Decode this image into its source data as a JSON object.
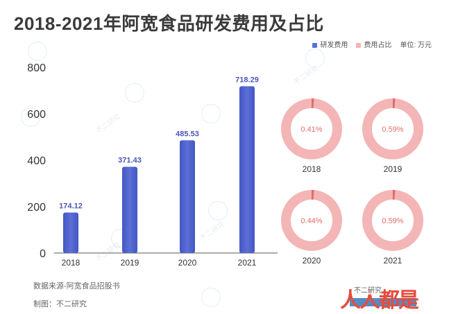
{
  "title": "2018-2021年阿宽食品研发费用及占比",
  "legend": {
    "rd_cost": "研发费用",
    "rd_ratio": "费用占比",
    "unit": "单位: 万元"
  },
  "colors": {
    "bar": "#5b6fd6",
    "bar_dark": "#4556c4",
    "ring": "#f3b5b5",
    "ring_accent": "#e46a6a",
    "label": "#4a56b8"
  },
  "chart_data": [
    {
      "type": "bar",
      "categories": [
        "2018",
        "2019",
        "2020",
        "2021"
      ],
      "values": [
        174.12,
        371.43,
        485.53,
        718.29
      ],
      "value_labels": [
        "174.12",
        "371.43",
        "485.53",
        "718.29"
      ],
      "ylim": [
        0,
        800
      ],
      "yticks": [
        "0",
        "200",
        "400",
        "600",
        "800"
      ],
      "grid": false,
      "series": [
        {
          "name": "研发费用",
          "values": [
            174.12,
            371.43,
            485.53,
            718.29
          ]
        }
      ]
    },
    {
      "type": "pie",
      "style": "donut",
      "categories": [
        "2018",
        "2019",
        "2020",
        "2021"
      ],
      "values": [
        0.41,
        0.59,
        0.44,
        0.59
      ],
      "value_labels": [
        "0.41%",
        "0.59%",
        "0.44%",
        "0.59%"
      ],
      "series": [
        {
          "name": "费用占比",
          "values": [
            0.41,
            0.59,
            0.44,
            0.59
          ]
        }
      ]
    }
  ],
  "footer": {
    "source": "数据来源-阿宽食品招股书",
    "maker": "制图：不二研究"
  },
  "watermark": "不二研究",
  "logo": {
    "main": "人人都是",
    "small": "不二研究"
  }
}
